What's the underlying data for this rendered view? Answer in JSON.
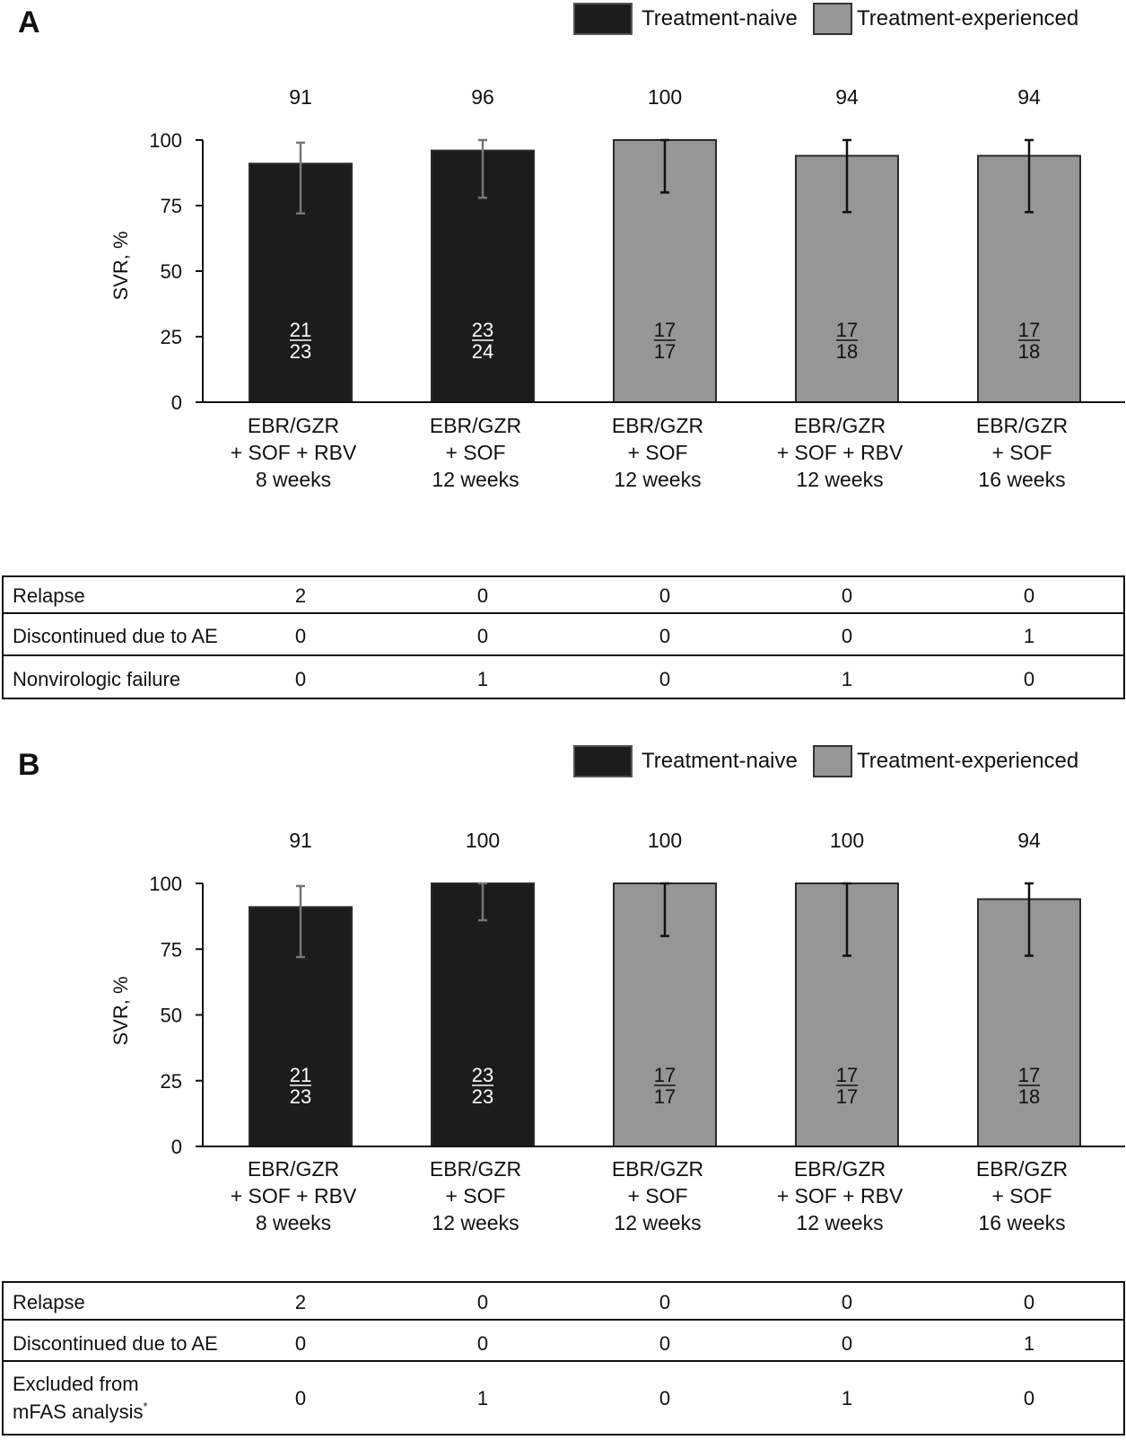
{
  "legend": {
    "naive_label": "Treatment-naive",
    "experienced_label": "Treatment-experienced"
  },
  "colors": {
    "naive": "#1c1c1c",
    "experienced": "#969696",
    "naive_text": "#ffffff",
    "experienced_text": "#111111",
    "naive_error": "#777777",
    "experienced_error": "#111111"
  },
  "chart_data": [
    {
      "panel": "A",
      "type": "bar",
      "ylabel": "SVR, %",
      "ylim": [
        0,
        100
      ],
      "yticks": [
        "0",
        "25",
        "50",
        "75",
        "100"
      ],
      "categories": [
        [
          "EBR/GZR",
          "+ SOF + RBV",
          "8 weeks"
        ],
        [
          "EBR/GZR",
          "+ SOF",
          "12 weeks"
        ],
        [
          "EBR/GZR",
          "+ SOF",
          "12 weeks"
        ],
        [
          "EBR/GZR",
          "+ SOF + RBV",
          "12 weeks"
        ],
        [
          "EBR/GZR",
          "+ SOF",
          "16 weeks"
        ]
      ],
      "groups": [
        "naive",
        "naive",
        "experienced",
        "experienced",
        "experienced"
      ],
      "values": [
        91,
        96,
        100,
        94,
        94
      ],
      "value_labels": [
        "91",
        "96",
        "100",
        "94",
        "94"
      ],
      "ci_low": [
        72,
        78,
        80,
        72.5,
        72.5
      ],
      "ci_high": [
        99,
        100,
        100,
        100,
        100
      ],
      "numerators": [
        "21",
        "23",
        "17",
        "17",
        "17"
      ],
      "denominators": [
        "23",
        "24",
        "17",
        "18",
        "18"
      ],
      "table": [
        {
          "label": [
            "Relapse"
          ],
          "values": [
            "2",
            "0",
            "0",
            "0",
            "0"
          ]
        },
        {
          "label": [
            "Discontinued due to AE"
          ],
          "values": [
            "0",
            "0",
            "0",
            "0",
            "1"
          ]
        },
        {
          "label": [
            "Nonvirologic failure"
          ],
          "values": [
            "0",
            "1",
            "0",
            "1",
            "0"
          ]
        }
      ]
    },
    {
      "panel": "B",
      "type": "bar",
      "ylabel": "SVR, %",
      "ylim": [
        0,
        100
      ],
      "yticks": [
        "0",
        "25",
        "50",
        "75",
        "100"
      ],
      "categories": [
        [
          "EBR/GZR",
          "+ SOF + RBV",
          "8 weeks"
        ],
        [
          "EBR/GZR",
          "+ SOF",
          "12 weeks"
        ],
        [
          "EBR/GZR",
          "+ SOF",
          "12 weeks"
        ],
        [
          "EBR/GZR",
          "+ SOF + RBV",
          "12 weeks"
        ],
        [
          "EBR/GZR",
          "+ SOF",
          "16 weeks"
        ]
      ],
      "groups": [
        "naive",
        "naive",
        "experienced",
        "experienced",
        "experienced"
      ],
      "values": [
        91,
        100,
        100,
        100,
        94
      ],
      "value_labels": [
        "91",
        "100",
        "100",
        "100",
        "94"
      ],
      "ci_low": [
        72,
        86,
        80,
        72.5,
        72.5
      ],
      "ci_high": [
        99,
        100,
        100,
        100,
        100
      ],
      "numerators": [
        "21",
        "23",
        "17",
        "17",
        "17"
      ],
      "denominators": [
        "23",
        "23",
        "17",
        "17",
        "18"
      ],
      "table": [
        {
          "label": [
            "Relapse"
          ],
          "values": [
            "2",
            "0",
            "0",
            "0",
            "0"
          ]
        },
        {
          "label": [
            "Discontinued due to AE"
          ],
          "values": [
            "0",
            "0",
            "0",
            "0",
            "1"
          ]
        },
        {
          "label": [
            "Excluded from",
            "mFAS analysis"
          ],
          "label_sup": "*",
          "values": [
            "0",
            "1",
            "0",
            "1",
            "0"
          ]
        }
      ]
    }
  ]
}
